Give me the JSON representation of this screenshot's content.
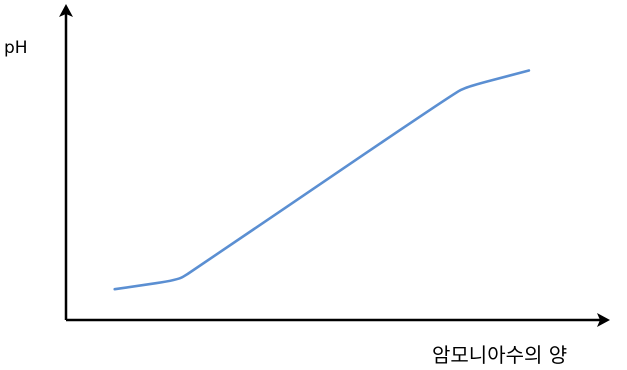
{
  "chart_data": {
    "type": "line",
    "ylabel": "pH",
    "xlabel": "암모니아수의 양",
    "x_ticks": [],
    "y_ticks": [],
    "series": [
      {
        "points": [
          [
            0.5,
            1.0
          ],
          [
            1.8,
            1.3
          ],
          [
            2.1,
            1.6
          ],
          [
            7.5,
            7.4
          ],
          [
            7.8,
            7.6
          ],
          [
            9.0,
            8.1
          ]
        ]
      }
    ],
    "xlim": [
      -0.5,
      10.5
    ],
    "ylim": [
      0,
      10
    ],
    "colors": {
      "line": "#5b8fd2",
      "axis": "#000000"
    },
    "grid": false
  }
}
